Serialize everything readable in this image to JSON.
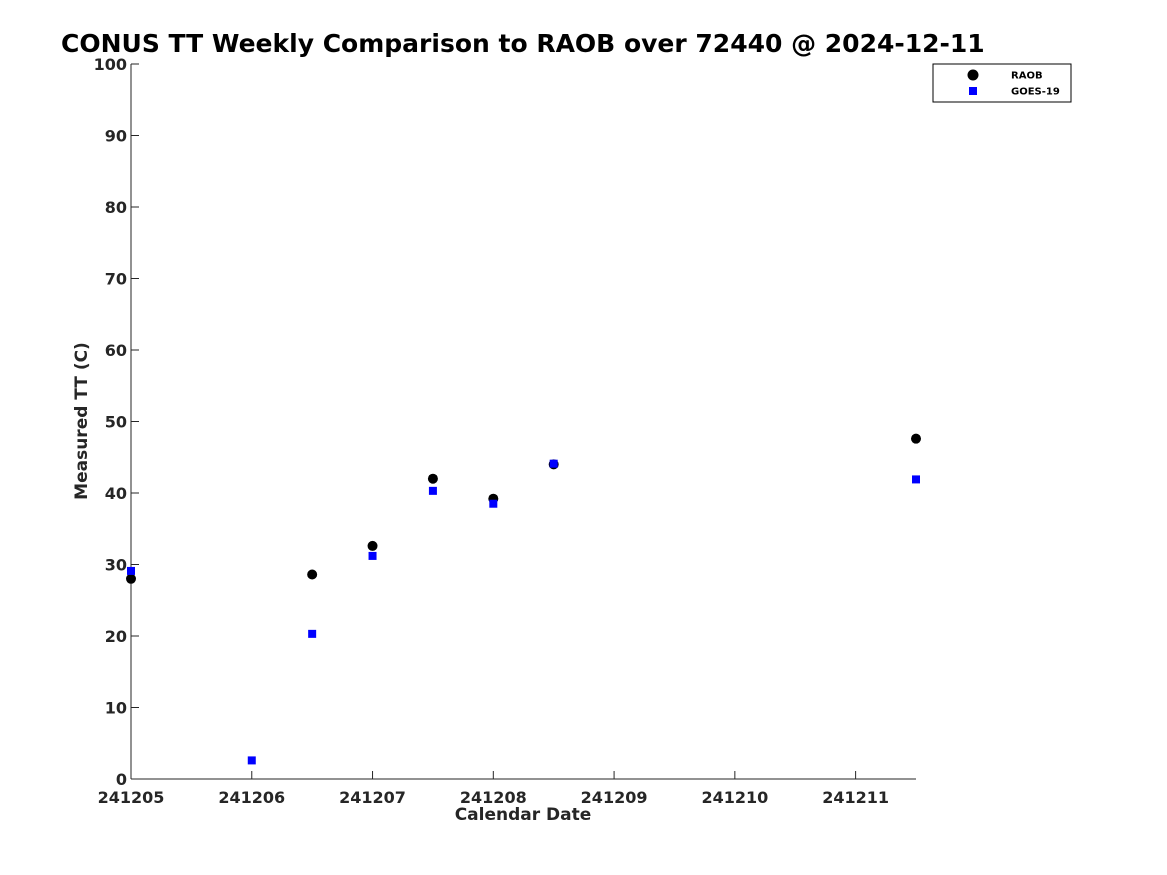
{
  "chart_data": {
    "type": "scatter",
    "title": "CONUS TT Weekly Comparison to RAOB over 72440 @ 2024-12-11",
    "xlabel": "Calendar Date",
    "ylabel": "Measured TT (C)",
    "xlim": [
      "2024-12-05",
      "2024-12-11 12:00"
    ],
    "ylim": [
      0,
      100
    ],
    "x_ticks": [
      "2024-12-05",
      "2024-12-06",
      "2024-12-07",
      "2024-12-08",
      "2024-12-09",
      "2024-12-10",
      "2024-12-11"
    ],
    "x_tick_labels": [
      "241205",
      "241206",
      "241207",
      "241208",
      "241209",
      "241210",
      "241211"
    ],
    "y_ticks": [
      0,
      10,
      20,
      30,
      40,
      50,
      60,
      70,
      80,
      90,
      100
    ],
    "grid": false,
    "legend_position": "top-right",
    "series": [
      {
        "name": "RAOB",
        "marker": "circle",
        "color": "#000000",
        "points": [
          {
            "x": "2024-12-05 00:00",
            "y": 28.0
          },
          {
            "x": "2024-12-06 12:00",
            "y": 28.6
          },
          {
            "x": "2024-12-07 00:00",
            "y": 32.6
          },
          {
            "x": "2024-12-07 12:00",
            "y": 42.0
          },
          {
            "x": "2024-12-08 00:00",
            "y": 39.2
          },
          {
            "x": "2024-12-08 12:00",
            "y": 44.0
          },
          {
            "x": "2024-12-11 12:00",
            "y": 47.6
          }
        ]
      },
      {
        "name": "GOES-19",
        "marker": "square",
        "color": "#0000ff",
        "points": [
          {
            "x": "2024-12-05 00:00",
            "y": 29.1
          },
          {
            "x": "2024-12-06 00:00",
            "y": 2.6
          },
          {
            "x": "2024-12-06 12:00",
            "y": 20.3
          },
          {
            "x": "2024-12-07 00:00",
            "y": 31.2
          },
          {
            "x": "2024-12-07 12:00",
            "y": 40.3
          },
          {
            "x": "2024-12-08 00:00",
            "y": 38.5
          },
          {
            "x": "2024-12-08 12:00",
            "y": 44.1
          },
          {
            "x": "2024-12-11 12:00",
            "y": 41.9
          }
        ]
      }
    ]
  }
}
